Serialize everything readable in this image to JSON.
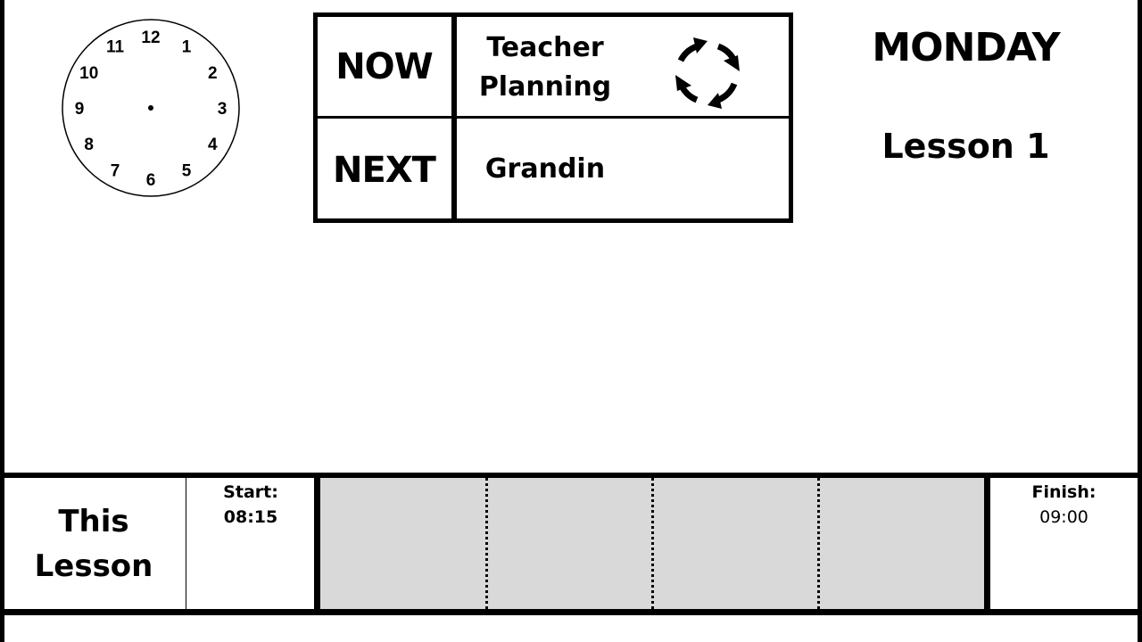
{
  "clock": {
    "numerals": [
      "12",
      "1",
      "2",
      "3",
      "4",
      "5",
      "6",
      "7",
      "8",
      "9",
      "10",
      "11"
    ],
    "icon": "analog-clock-face"
  },
  "now_next": {
    "now_label": "NOW",
    "now_value": "Teacher\nPlanning",
    "next_label": "NEXT",
    "next_value": "Grandin",
    "now_icon": "cycle-arrows-icon"
  },
  "header": {
    "day": "MONDAY",
    "lesson": "Lesson 1"
  },
  "lesson_bar": {
    "title": "This\nLesson",
    "start_label": "Start:",
    "start_time": "08:15",
    "finish_label": "Finish:",
    "finish_time": "09:00",
    "segments": 4,
    "fill_color": "#d9d9d9"
  }
}
